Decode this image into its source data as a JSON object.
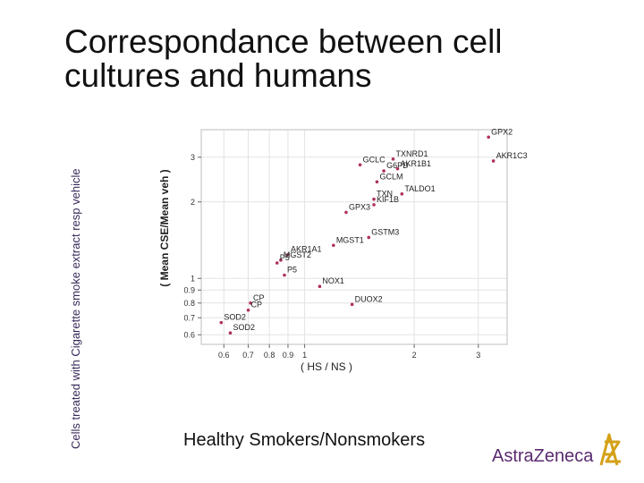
{
  "slide": {
    "title": "Correspondance between cell cultures and humans",
    "side_label": "Cells treated with Cigarette smoke extract resp vehicle",
    "caption": "Healthy Smokers/Nonsmokers",
    "logo_text": "AstraZeneca"
  },
  "colors": {
    "point": "#b03060",
    "grid": "#e3e3e3",
    "frame": "#bdbdbd",
    "logo": "#5a2a6f",
    "logo_mark": "#d4a017"
  },
  "chart_data": {
    "type": "scatter",
    "title": "",
    "xlabel": "( HS / NS )",
    "ylabel": "( Mean CSE/Mean veh )",
    "x_scale": "log",
    "y_scale": "log",
    "xlim": [
      0.52,
      3.6
    ],
    "ylim": [
      0.55,
      3.85
    ],
    "grid": true,
    "x_ticks": [
      0.6,
      0.7,
      0.8,
      0.9,
      1,
      2,
      3
    ],
    "x_tick_labels": [
      "0.6",
      "0.7",
      "0.8",
      "0.9",
      "1",
      "2",
      "3"
    ],
    "y_ticks": [
      0.6,
      0.7,
      0.8,
      0.9,
      1,
      2,
      3
    ],
    "y_tick_labels": [
      "0.6",
      "0.7",
      "0.8",
      "0.9",
      "1",
      "2",
      "3"
    ],
    "points": [
      {
        "label": "GPX2",
        "x": 3.2,
        "y": 3.6
      },
      {
        "label": "AKR1C3",
        "x": 3.3,
        "y": 2.9
      },
      {
        "label": "TXNRD1",
        "x": 1.75,
        "y": 2.95
      },
      {
        "label": "GCLC",
        "x": 1.42,
        "y": 2.8
      },
      {
        "label": "G6PD",
        "x": 1.65,
        "y": 2.65
      },
      {
        "label": "AKR1B1",
        "x": 1.8,
        "y": 2.7
      },
      {
        "label": "GCLM",
        "x": 1.58,
        "y": 2.4
      },
      {
        "label": "TALDO1",
        "x": 1.85,
        "y": 2.15
      },
      {
        "label": "TXN",
        "x": 1.55,
        "y": 2.05
      },
      {
        "label": "KIF1B",
        "x": 1.55,
        "y": 1.95
      },
      {
        "label": "GPX3",
        "x": 1.3,
        "y": 1.82
      },
      {
        "label": "GSTM3",
        "x": 1.5,
        "y": 1.45
      },
      {
        "label": "MGST1",
        "x": 1.2,
        "y": 1.35
      },
      {
        "label": "AKR1A1",
        "x": 0.9,
        "y": 1.24
      },
      {
        "label": "MGST2",
        "x": 0.86,
        "y": 1.18
      },
      {
        "label": "P5",
        "x": 0.84,
        "y": 1.15
      },
      {
        "label": "P5",
        "x": 0.88,
        "y": 1.03
      },
      {
        "label": "NOX1",
        "x": 1.1,
        "y": 0.93
      },
      {
        "label": "DUOX2",
        "x": 1.35,
        "y": 0.79
      },
      {
        "label": "CP",
        "x": 0.71,
        "y": 0.8
      },
      {
        "label": "CP",
        "x": 0.7,
        "y": 0.75
      },
      {
        "label": "SOD2",
        "x": 0.59,
        "y": 0.67
      },
      {
        "label": "SOD2",
        "x": 0.625,
        "y": 0.61
      }
    ]
  }
}
